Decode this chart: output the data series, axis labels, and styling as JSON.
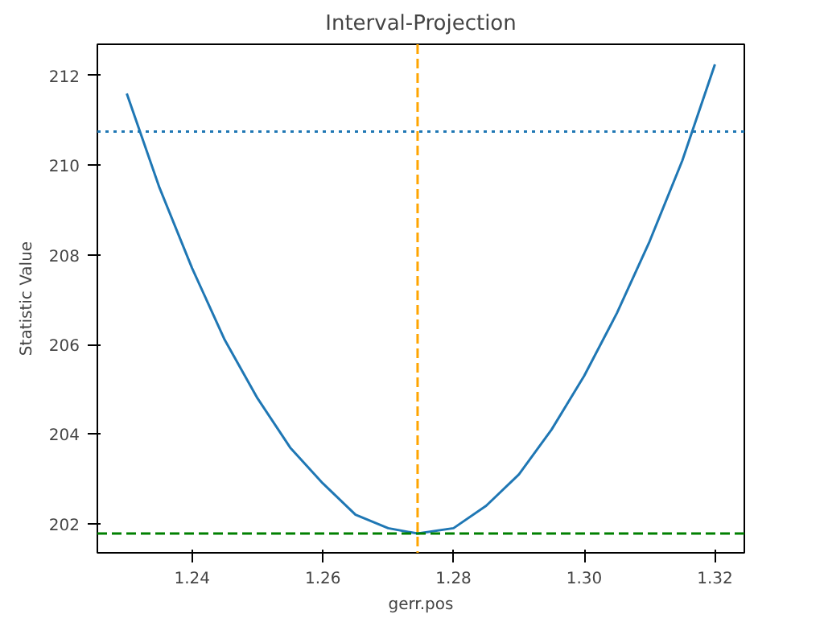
{
  "chart_data": {
    "type": "line",
    "title": "Interval-Projection",
    "xlabel": "gerr.pos",
    "ylabel": "Statistic Value",
    "x": [
      1.23,
      1.235,
      1.24,
      1.245,
      1.25,
      1.255,
      1.26,
      1.265,
      1.27,
      1.2745,
      1.28,
      1.285,
      1.29,
      1.295,
      1.3,
      1.305,
      1.31,
      1.315,
      1.32
    ],
    "series": [
      {
        "color": "#1f77b4",
        "values": [
          211.6,
          209.5,
          207.7,
          206.1,
          204.8,
          203.7,
          202.9,
          202.2,
          201.9,
          201.78,
          201.9,
          202.4,
          203.1,
          204.1,
          205.3,
          206.7,
          208.3,
          210.1,
          212.25
        ]
      }
    ],
    "xlim": [
      1.2255,
      1.3245
    ],
    "ylim": [
      201.35,
      212.7
    ],
    "xticks": [
      1.24,
      1.26,
      1.28,
      {
        "value": 1.3,
        "label": "1.30"
      },
      1.32
    ],
    "yticks": [
      202,
      204,
      206,
      208,
      210,
      212
    ],
    "grid": false,
    "line_style": "solid",
    "ref_lines": [
      {
        "axis": "y",
        "value": 210.75,
        "color": "#1f77b4",
        "line_style": "dotted"
      },
      {
        "axis": "x",
        "value": 1.2745,
        "color": "#ffa500",
        "line_style": "dashed"
      },
      {
        "axis": "y",
        "value": 201.78,
        "color": "#008000",
        "line_style": "dashed"
      }
    ]
  }
}
